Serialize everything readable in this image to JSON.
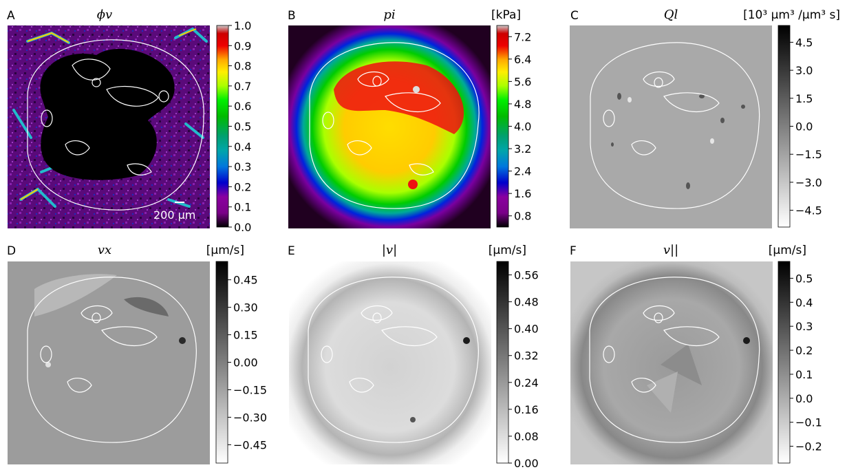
{
  "chart_data": [
    {
      "type": "heatmap",
      "panel": "A",
      "title": "ϕv",
      "units": "",
      "colormap": "nipy_spectral",
      "colorbar_ticks": [
        "1.0",
        "0.9",
        "0.8",
        "0.7",
        "0.6",
        "0.5",
        "0.4",
        "0.3",
        "0.2",
        "0.1",
        "0.0"
      ],
      "colorbar_range": [
        0.0,
        1.0
      ],
      "scale_bar_label": "200 μm"
    },
    {
      "type": "heatmap",
      "panel": "B",
      "title": "pi",
      "units": "[kPa]",
      "colormap": "nipy_spectral",
      "colorbar_ticks": [
        "7.2",
        "6.4",
        "5.6",
        "4.8",
        "4.0",
        "3.2",
        "2.4",
        "1.6",
        "0.8"
      ],
      "colorbar_range": [
        0.4,
        7.6
      ]
    },
    {
      "type": "heatmap",
      "panel": "C",
      "title": "Ql",
      "units": "[10³ μm³ /μm³ s]",
      "colormap": "gray_r",
      "colorbar_ticks": [
        "4.5",
        "3.0",
        "1.5",
        "0.0",
        "−1.5",
        "−3.0",
        "−4.5"
      ],
      "colorbar_range": [
        -5.4,
        5.4
      ]
    },
    {
      "type": "heatmap",
      "panel": "D",
      "title": "vx",
      "units": "[μm/s]",
      "colormap": "gray_r",
      "colorbar_ticks": [
        "0.45",
        "0.30",
        "0.15",
        "0.00",
        "−0.15",
        "−0.30",
        "−0.45"
      ],
      "colorbar_range": [
        -0.55,
        0.55
      ]
    },
    {
      "type": "heatmap",
      "panel": "E",
      "title": "|v|",
      "units": "[μm/s]",
      "colormap": "gray_r",
      "colorbar_ticks": [
        "0.56",
        "0.48",
        "0.40",
        "0.32",
        "0.24",
        "0.16",
        "0.08",
        "0.00"
      ],
      "colorbar_range": [
        0.0,
        0.6
      ]
    },
    {
      "type": "heatmap",
      "panel": "F",
      "title": "v||",
      "units": "[μm/s]",
      "colormap": "gray_r",
      "colorbar_ticks": [
        "0.5",
        "0.4",
        "0.3",
        "0.2",
        "0.1",
        "0.0",
        "−0.1",
        "−0.2"
      ],
      "colorbar_range": [
        -0.27,
        0.57
      ]
    }
  ]
}
